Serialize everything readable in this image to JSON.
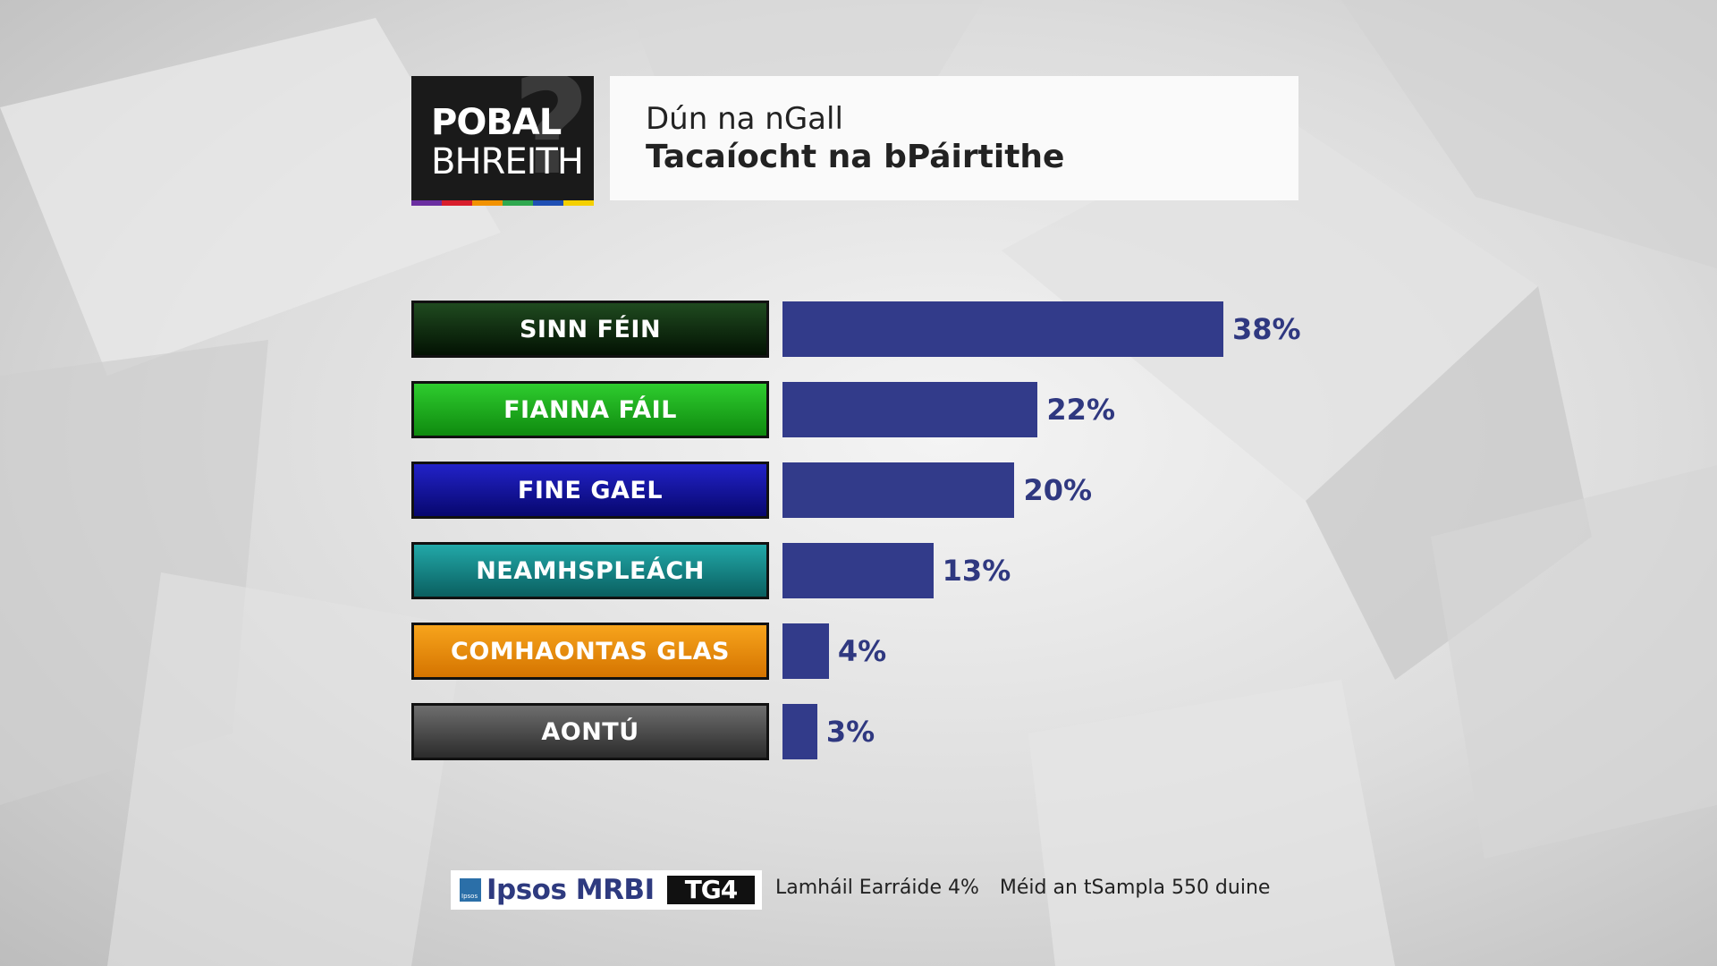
{
  "logo": {
    "line1": "POBAL",
    "line2": "BHREITH",
    "mark": "?",
    "stripe_colors": [
      "#6a2ea0",
      "#d81e2c",
      "#f29200",
      "#2fa84f",
      "#1f4fb4",
      "#f4d000"
    ]
  },
  "header": {
    "subtitle": "Dún na nGall",
    "title": "Tacaíocht na bPáirtithe"
  },
  "chart_data": {
    "type": "bar",
    "orientation": "horizontal",
    "categories": [
      "SINN FÉIN",
      "FIANNA FÁIL",
      "FINE GAEL",
      "NEAMHSPLEÁCH",
      "COMHAONTAS GLAS",
      "AONTÚ"
    ],
    "values": [
      38,
      22,
      20,
      13,
      4,
      3
    ],
    "value_labels": [
      "38%",
      "22%",
      "20%",
      "13%",
      "4%",
      "3%"
    ],
    "unit": "%",
    "bar_color": "#323b8a",
    "category_colors": [
      [
        "#1f4a1f",
        "#031203"
      ],
      [
        "#2ecc2e",
        "#0f8a0f"
      ],
      [
        "#2222c8",
        "#07076e"
      ],
      [
        "#22a8a8",
        "#0a5f60"
      ],
      [
        "#f7a41c",
        "#d57400"
      ],
      [
        "#6e6e6e",
        "#2b2b2b"
      ]
    ],
    "xlim": [
      0,
      38
    ]
  },
  "footer": {
    "ipsos_label": "Ipsos MRBI",
    "ipsos_mark": "Ipsos",
    "tg4_label": "TG4",
    "margin_of_error": "Lamháil Earráide 4%",
    "sample_size": "Méid an tSampla 550 duine"
  }
}
